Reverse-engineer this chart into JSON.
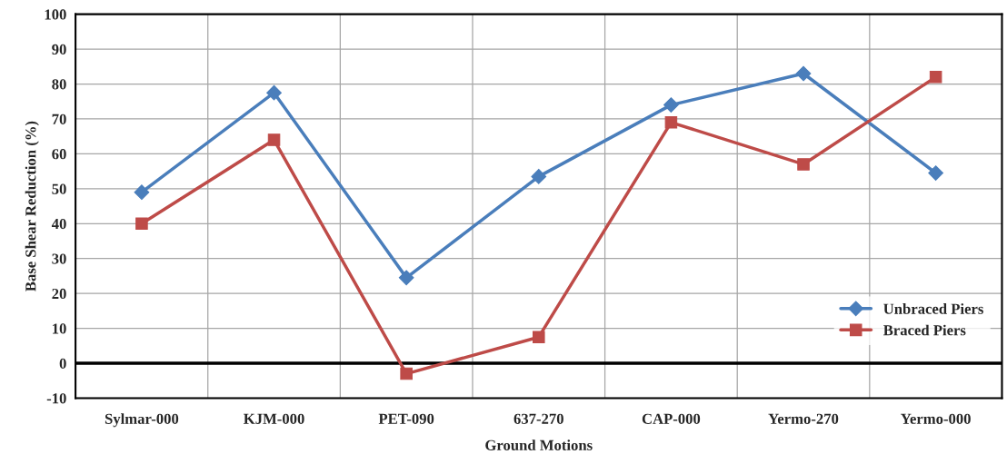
{
  "chart_data": {
    "type": "line",
    "xlabel": "Ground Motions",
    "ylabel": "Base Shear Reduction (%)",
    "categories": [
      "Sylmar-000",
      "KJM-000",
      "PET-090",
      "637-270",
      "CAP-000",
      "Yermo-270",
      "Yermo-000"
    ],
    "series": [
      {
        "name": "Unbraced Piers",
        "color": "#4a7ebb",
        "marker": "diamond",
        "values": [
          49,
          77.5,
          24.5,
          53.5,
          74,
          83,
          54.5
        ]
      },
      {
        "name": "Braced Piers",
        "color": "#be4b48",
        "marker": "square",
        "values": [
          40,
          64,
          -3,
          7.5,
          69,
          57,
          82
        ]
      }
    ],
    "ylim": [
      -10,
      100
    ],
    "yticks": [
      -10,
      0,
      10,
      20,
      30,
      40,
      50,
      60,
      70,
      80,
      90,
      100
    ],
    "ref_lines": [
      {
        "axis": "y",
        "value": 0,
        "color": "#000000"
      }
    ],
    "grid": true,
    "legend": "bottom right",
    "line_style": "solid"
  }
}
